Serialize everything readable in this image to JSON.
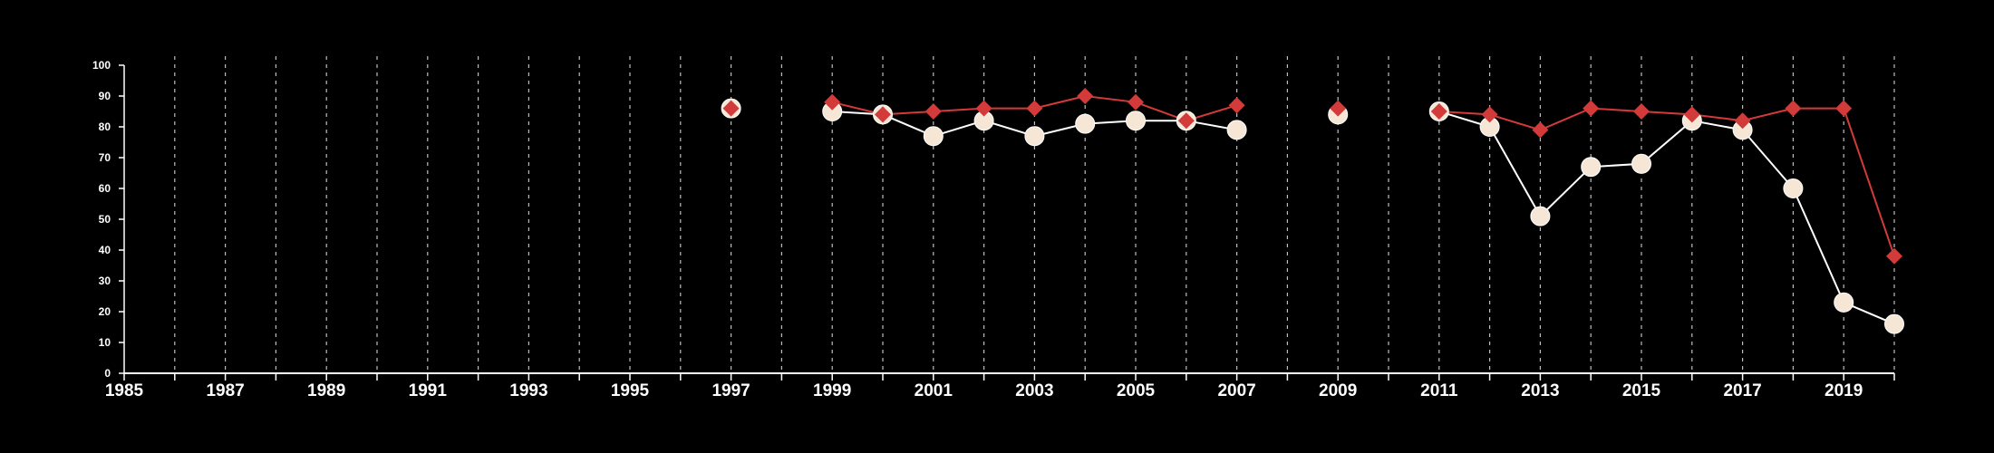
{
  "chart_data": {
    "type": "line",
    "x_ticks": [
      1985,
      1987,
      1989,
      1991,
      1993,
      1995,
      1997,
      1999,
      2001,
      2003,
      2005,
      2007,
      2009,
      2011,
      2013,
      2015,
      2017,
      2019
    ],
    "y_ticks": [
      0,
      10,
      20,
      30,
      40,
      50,
      60,
      70,
      80,
      90,
      100
    ],
    "xlim": [
      1985,
      2020
    ],
    "ylim": [
      0,
      100
    ],
    "grid": "vertical dashed lines at each year",
    "series": [
      {
        "marker": "diamond",
        "color": "#d33a3a",
        "segments": [
          [
            [
              1997,
              86
            ]
          ],
          [
            [
              1999,
              88
            ],
            [
              2000,
              84
            ],
            [
              2001,
              85
            ],
            [
              2002,
              86
            ],
            [
              2003,
              86
            ],
            [
              2004,
              90
            ],
            [
              2005,
              88
            ],
            [
              2006,
              82
            ],
            [
              2007,
              87
            ]
          ],
          [
            [
              2009,
              86
            ]
          ],
          [
            [
              2011,
              85
            ],
            [
              2012,
              84
            ],
            [
              2013,
              79
            ],
            [
              2014,
              86
            ],
            [
              2015,
              85
            ],
            [
              2016,
              84
            ],
            [
              2017,
              82
            ],
            [
              2018,
              86
            ],
            [
              2019,
              86
            ],
            [
              2020,
              38
            ]
          ]
        ]
      },
      {
        "marker": "circle",
        "color": "#f5e6d6",
        "line_color": "#ffffff",
        "segments": [
          [
            [
              1997,
              86
            ]
          ],
          [
            [
              1999,
              85
            ],
            [
              2000,
              84
            ],
            [
              2001,
              77
            ],
            [
              2002,
              82
            ],
            [
              2003,
              77
            ],
            [
              2004,
              81
            ],
            [
              2005,
              82
            ],
            [
              2006,
              82
            ],
            [
              2007,
              79
            ]
          ],
          [
            [
              2009,
              84
            ]
          ],
          [
            [
              2011,
              85
            ],
            [
              2012,
              80
            ],
            [
              2013,
              51
            ],
            [
              2014,
              67
            ],
            [
              2015,
              68
            ],
            [
              2016,
              82
            ],
            [
              2017,
              79
            ],
            [
              2018,
              60
            ],
            [
              2019,
              23
            ],
            [
              2020,
              16
            ]
          ]
        ]
      }
    ]
  }
}
